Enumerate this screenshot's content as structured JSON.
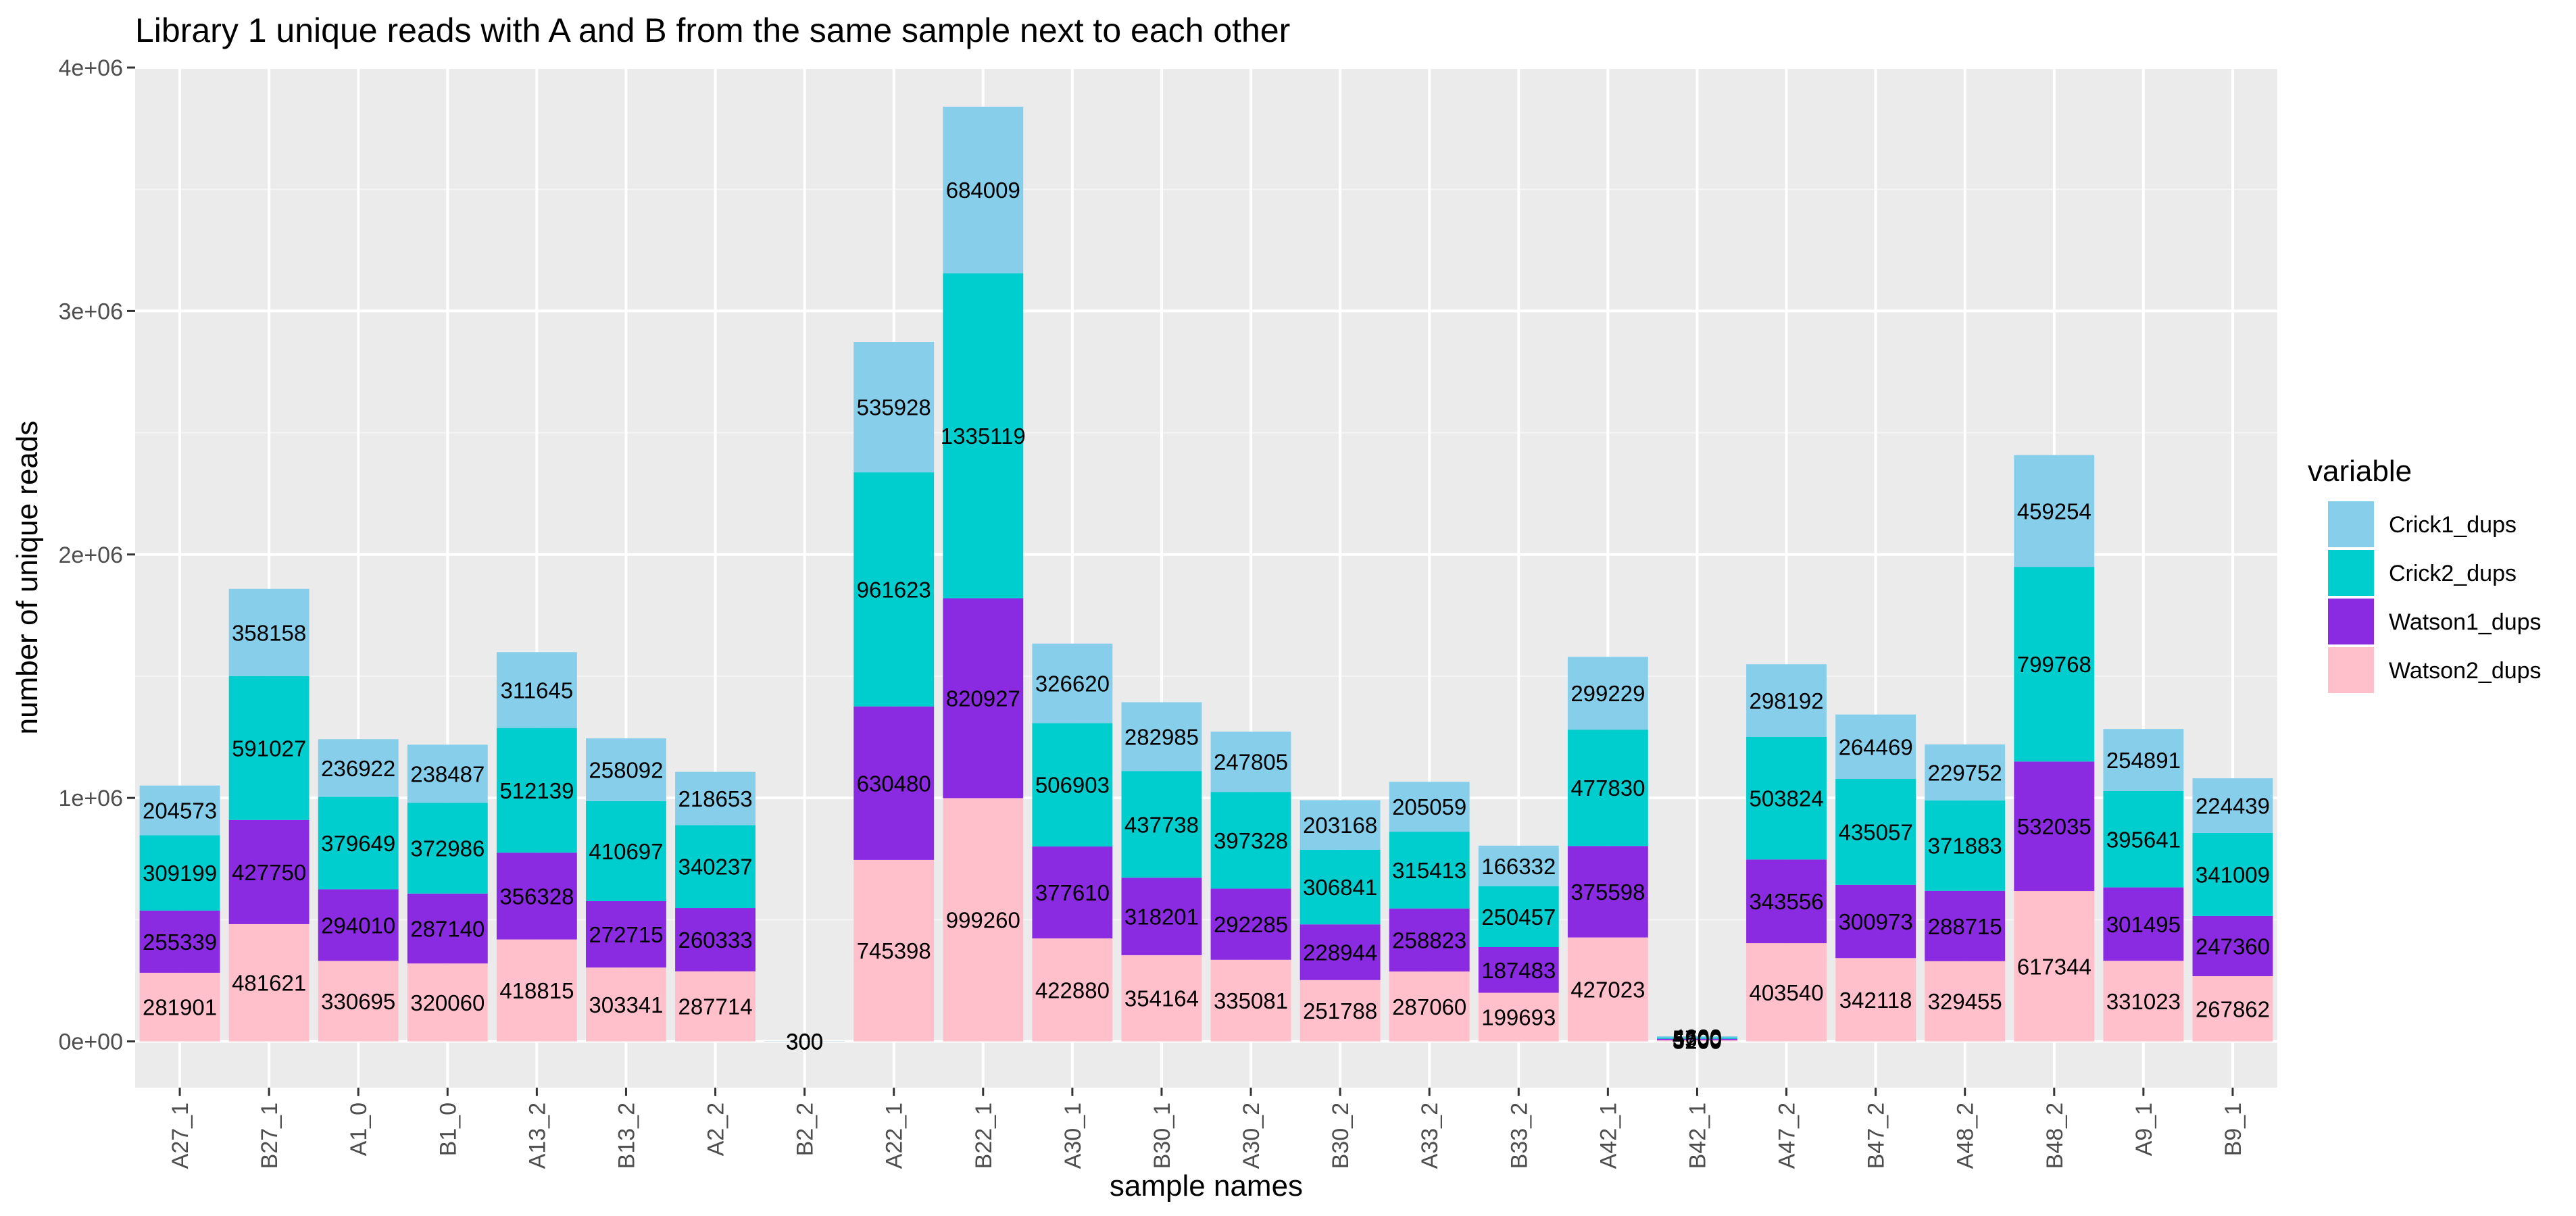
{
  "chart_data": {
    "type": "bar",
    "stacked": true,
    "title": "Library 1 unique reads with A and B from the same sample next to each other",
    "xlabel": "sample names",
    "ylabel": "number of unique reads",
    "ylim": [
      -190000,
      4000000
    ],
    "y_ticks": [
      {
        "value": 0,
        "label": "0e+00"
      },
      {
        "value": 1000000,
        "label": "1e+06"
      },
      {
        "value": 2000000,
        "label": "2e+06"
      },
      {
        "value": 3000000,
        "label": "3e+06"
      },
      {
        "value": 4000000,
        "label": "4e+06"
      }
    ],
    "grid": true,
    "legend_position": "right",
    "legend_title": "variable",
    "categories": [
      "A27_1",
      "B27_1",
      "A1_0",
      "B1_0",
      "A13_2",
      "B13_2",
      "A2_2",
      "B2_2",
      "A22_1",
      "B22_1",
      "A30_1",
      "B30_1",
      "A30_2",
      "B30_2",
      "A33_2",
      "B33_2",
      "A42_1",
      "B42_1",
      "A47_2",
      "B47_2",
      "A48_2",
      "B48_2",
      "A9_1",
      "B9_1"
    ],
    "series": [
      {
        "name": "Watson2_dups",
        "color": "#ffc0cb",
        "values": [
          281901,
          481621,
          330695,
          320060,
          418815,
          303341,
          287714,
          300,
          745398,
          999260,
          422880,
          354164,
          335081,
          251788,
          287060,
          199693,
          427023,
          5200,
          403540,
          342118,
          329455,
          617344,
          331023,
          267862
        ]
      },
      {
        "name": "Watson1_dups",
        "color": "#8a2be2",
        "values": [
          255339,
          427750,
          294010,
          287140,
          356328,
          272715,
          260333,
          300,
          630480,
          820927,
          377610,
          318201,
          292285,
          228944,
          258823,
          187483,
          375598,
          5500,
          343556,
          300973,
          288715,
          532035,
          301495,
          247360
        ]
      },
      {
        "name": "Crick2_dups",
        "color": "#00cdcd",
        "values": [
          309199,
          591027,
          379649,
          372986,
          512139,
          410697,
          340237,
          300,
          961623,
          1335119,
          506903,
          437738,
          397328,
          306841,
          315413,
          250457,
          477830,
          5700,
          503824,
          435057,
          371883,
          799768,
          395641,
          341009
        ]
      },
      {
        "name": "Crick1_dups",
        "color": "#87ceeb",
        "values": [
          204573,
          358158,
          236922,
          238487,
          311645,
          258092,
          218653,
          300,
          535928,
          684009,
          326620,
          282985,
          247805,
          203168,
          205059,
          166332,
          299229,
          4600,
          298192,
          264469,
          229752,
          459254,
          254891,
          224439
        ]
      }
    ]
  }
}
